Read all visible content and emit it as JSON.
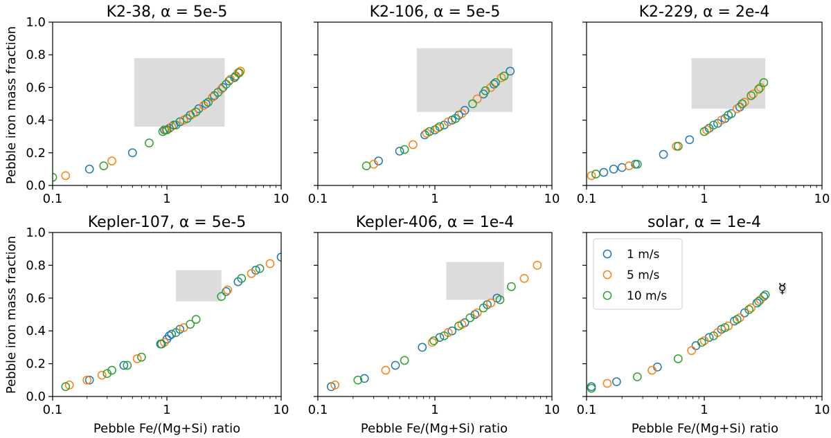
{
  "figure": {
    "ylabel": "Pebble iron mass fraction",
    "xlabel": "Pebble Fe/(Mg+Si) ratio",
    "alpha_symbol": "α"
  },
  "chart_data": [
    {
      "type": "scatter",
      "title": "K2-38, α = 5e-5",
      "name": "K2-38",
      "alpha": "5e-5",
      "xscale": "log",
      "xlim": [
        0.1,
        10
      ],
      "ylim": [
        0,
        1.0
      ],
      "xticks": [
        "0.1",
        "1",
        "10"
      ],
      "yticks": [
        "0.0",
        "0.2",
        "0.4",
        "0.6",
        "0.8",
        "1.0"
      ],
      "box": {
        "x": [
          0.52,
          3.2
        ],
        "y": [
          0.36,
          0.78
        ]
      },
      "series": [
        {
          "name": "1 m/s",
          "color": "#1f77b4",
          "points": [
            [
              0.21,
              0.1
            ],
            [
              0.5,
              0.2
            ],
            [
              0.95,
              0.34
            ],
            [
              1.05,
              0.35
            ],
            [
              1.15,
              0.37
            ],
            [
              1.3,
              0.39
            ],
            [
              1.6,
              0.43
            ],
            [
              1.9,
              0.47
            ],
            [
              2.2,
              0.5
            ],
            [
              2.6,
              0.55
            ],
            [
              3.1,
              0.6
            ],
            [
              3.5,
              0.64
            ],
            [
              4.0,
              0.67
            ]
          ]
        },
        {
          "name": "5 m/s",
          "color": "#ff7f0e",
          "points": [
            [
              0.13,
              0.06
            ],
            [
              0.33,
              0.15
            ],
            [
              0.98,
              0.34
            ],
            [
              1.1,
              0.36
            ],
            [
              1.4,
              0.4
            ],
            [
              1.7,
              0.44
            ],
            [
              2.1,
              0.49
            ],
            [
              2.5,
              0.54
            ],
            [
              3.0,
              0.59
            ],
            [
              3.6,
              0.65
            ],
            [
              4.2,
              0.69
            ],
            [
              4.4,
              0.7
            ]
          ]
        },
        {
          "name": "10 m/s",
          "color": "#2ca02c",
          "points": [
            [
              0.1,
              0.05
            ],
            [
              0.28,
              0.12
            ],
            [
              0.7,
              0.26
            ],
            [
              0.92,
              0.33
            ],
            [
              1.0,
              0.34
            ],
            [
              1.2,
              0.37
            ],
            [
              1.5,
              0.41
            ],
            [
              1.8,
              0.45
            ],
            [
              2.3,
              0.51
            ],
            [
              2.8,
              0.57
            ],
            [
              3.3,
              0.62
            ],
            [
              3.9,
              0.66
            ],
            [
              4.3,
              0.69
            ]
          ]
        }
      ]
    },
    {
      "type": "scatter",
      "title": "K2-106, α = 5e-5",
      "name": "K2-106",
      "alpha": "5e-5",
      "xscale": "log",
      "xlim": [
        0.1,
        10
      ],
      "ylim": [
        0,
        1.0
      ],
      "xticks": [
        "0.1",
        "1",
        "10"
      ],
      "yticks": [
        "0.0",
        "0.2",
        "0.4",
        "0.6",
        "0.8",
        "1.0"
      ],
      "box": {
        "x": [
          0.7,
          4.6
        ],
        "y": [
          0.45,
          0.84
        ]
      },
      "series": [
        {
          "name": "1 m/s",
          "color": "#1f77b4",
          "points": [
            [
              0.33,
              0.15
            ],
            [
              0.5,
              0.21
            ],
            [
              0.82,
              0.31
            ],
            [
              1.0,
              0.34
            ],
            [
              1.2,
              0.37
            ],
            [
              1.4,
              0.4
            ],
            [
              1.6,
              0.43
            ],
            [
              1.8,
              0.46
            ],
            [
              2.6,
              0.56
            ],
            [
              3.2,
              0.62
            ],
            [
              4.4,
              0.7
            ]
          ]
        },
        {
          "name": "5 m/s",
          "color": "#ff7f0e",
          "points": [
            [
              0.3,
              0.13
            ],
            [
              0.65,
              0.25
            ],
            [
              0.85,
              0.32
            ],
            [
              1.05,
              0.35
            ],
            [
              1.3,
              0.39
            ],
            [
              1.7,
              0.44
            ],
            [
              2.3,
              0.53
            ],
            [
              3.0,
              0.6
            ],
            [
              3.7,
              0.66
            ]
          ]
        },
        {
          "name": "10 m/s",
          "color": "#2ca02c",
          "points": [
            [
              0.26,
              0.12
            ],
            [
              0.55,
              0.22
            ],
            [
              0.9,
              0.33
            ],
            [
              1.1,
              0.36
            ],
            [
              1.5,
              0.41
            ],
            [
              2.1,
              0.5
            ],
            [
              2.7,
              0.58
            ],
            [
              3.3,
              0.63
            ],
            [
              3.9,
              0.67
            ]
          ]
        }
      ]
    },
    {
      "type": "scatter",
      "title": "K2-229, α = 2e-4",
      "name": "K2-229",
      "alpha": "2e-4",
      "xscale": "log",
      "xlim": [
        0.1,
        10
      ],
      "ylim": [
        0,
        1.0
      ],
      "xticks": [
        "0.1",
        "1",
        "10"
      ],
      "yticks": [
        "0.0",
        "0.2",
        "0.4",
        "0.6",
        "0.8",
        "1.0"
      ],
      "box": {
        "x": [
          0.78,
          3.3
        ],
        "y": [
          0.47,
          0.78
        ]
      },
      "series": [
        {
          "name": "1 m/s",
          "color": "#1f77b4",
          "points": [
            [
              0.14,
              0.08
            ],
            [
              0.17,
              0.1
            ],
            [
              0.2,
              0.11
            ],
            [
              0.26,
              0.13
            ],
            [
              0.45,
              0.19
            ],
            [
              0.75,
              0.28
            ],
            [
              1.1,
              0.35
            ],
            [
              1.3,
              0.38
            ],
            [
              1.5,
              0.41
            ],
            [
              1.7,
              0.44
            ],
            [
              2.0,
              0.48
            ]
          ]
        },
        {
          "name": "5 m/s",
          "color": "#ff7f0e",
          "points": [
            [
              0.11,
              0.06
            ],
            [
              0.23,
              0.12
            ],
            [
              0.58,
              0.24
            ],
            [
              1.05,
              0.34
            ],
            [
              1.4,
              0.4
            ],
            [
              1.9,
              0.47
            ],
            [
              2.2,
              0.51
            ],
            [
              2.6,
              0.56
            ],
            [
              3.0,
              0.6
            ]
          ]
        },
        {
          "name": "10 m/s",
          "color": "#2ca02c",
          "points": [
            [
              0.12,
              0.07
            ],
            [
              0.27,
              0.13
            ],
            [
              0.6,
              0.24
            ],
            [
              1.0,
              0.33
            ],
            [
              1.2,
              0.37
            ],
            [
              1.6,
              0.43
            ],
            [
              2.1,
              0.5
            ],
            [
              2.5,
              0.55
            ],
            [
              2.9,
              0.59
            ],
            [
              3.2,
              0.63
            ]
          ]
        }
      ]
    },
    {
      "type": "scatter",
      "title": "Kepler-107, α = 5e-5",
      "name": "Kepler-107",
      "alpha": "5e-5",
      "xscale": "log",
      "xlim": [
        0.1,
        10
      ],
      "ylim": [
        0,
        1.0
      ],
      "xticks": [
        "0.1",
        "1",
        "10"
      ],
      "yticks": [
        "0.0",
        "0.2",
        "0.4",
        "0.6",
        "0.8",
        "1.0"
      ],
      "box": {
        "x": [
          1.2,
          3.0
        ],
        "y": [
          0.58,
          0.77
        ]
      },
      "series": [
        {
          "name": "1 m/s",
          "color": "#1f77b4",
          "points": [
            [
              0.21,
              0.1
            ],
            [
              0.42,
              0.19
            ],
            [
              0.88,
              0.32
            ],
            [
              1.0,
              0.35
            ],
            [
              1.05,
              0.37
            ],
            [
              1.1,
              0.38
            ],
            [
              1.3,
              0.41
            ],
            [
              3.3,
              0.64
            ],
            [
              4.2,
              0.7
            ],
            [
              6.0,
              0.77
            ],
            [
              10.0,
              0.85
            ]
          ]
        },
        {
          "name": "5 m/s",
          "color": "#ff7f0e",
          "points": [
            [
              0.14,
              0.07
            ],
            [
              0.2,
              0.1
            ],
            [
              0.27,
              0.13
            ],
            [
              0.55,
              0.23
            ],
            [
              0.95,
              0.33
            ],
            [
              1.4,
              0.42
            ],
            [
              3.4,
              0.65
            ],
            [
              5.5,
              0.75
            ],
            [
              8.0,
              0.81
            ]
          ]
        },
        {
          "name": "10 m/s",
          "color": "#2ca02c",
          "points": [
            [
              0.13,
              0.06
            ],
            [
              0.3,
              0.14
            ],
            [
              0.33,
              0.16
            ],
            [
              0.45,
              0.19
            ],
            [
              0.6,
              0.24
            ],
            [
              0.9,
              0.32
            ],
            [
              1.2,
              0.39
            ],
            [
              1.6,
              0.44
            ],
            [
              1.8,
              0.47
            ],
            [
              3.0,
              0.61
            ],
            [
              4.5,
              0.72
            ],
            [
              6.5,
              0.78
            ]
          ]
        }
      ]
    },
    {
      "type": "scatter",
      "title": "Kepler-406, α = 1e-4",
      "name": "Kepler-406",
      "alpha": "1e-4",
      "xscale": "log",
      "xlim": [
        0.1,
        10
      ],
      "ylim": [
        0,
        1.0
      ],
      "xticks": [
        "0.1",
        "1",
        "10"
      ],
      "yticks": [
        "0.0",
        "0.2",
        "0.4",
        "0.6",
        "0.8",
        "1.0"
      ],
      "box": {
        "x": [
          1.25,
          3.9
        ],
        "y": [
          0.59,
          0.82
        ]
      },
      "series": [
        {
          "name": "1 m/s",
          "color": "#1f77b4",
          "points": [
            [
              0.13,
              0.06
            ],
            [
              0.25,
              0.11
            ],
            [
              0.46,
              0.19
            ],
            [
              0.78,
              0.3
            ],
            [
              1.1,
              0.36
            ],
            [
              1.4,
              0.4
            ],
            [
              1.8,
              0.45
            ],
            [
              2.2,
              0.5
            ],
            [
              2.8,
              0.56
            ],
            [
              3.4,
              0.6
            ]
          ]
        },
        {
          "name": "5 m/s",
          "color": "#ff7f0e",
          "points": [
            [
              0.14,
              0.07
            ],
            [
              0.38,
              0.16
            ],
            [
              0.95,
              0.33
            ],
            [
              1.3,
              0.39
            ],
            [
              1.7,
              0.44
            ],
            [
              2.3,
              0.51
            ],
            [
              3.0,
              0.57
            ],
            [
              5.8,
              0.72
            ],
            [
              7.5,
              0.8
            ]
          ]
        },
        {
          "name": "10 m/s",
          "color": "#2ca02c",
          "points": [
            [
              0.22,
              0.1
            ],
            [
              0.55,
              0.22
            ],
            [
              0.98,
              0.34
            ],
            [
              1.2,
              0.37
            ],
            [
              1.6,
              0.43
            ],
            [
              2.0,
              0.48
            ],
            [
              2.6,
              0.54
            ],
            [
              3.6,
              0.59
            ],
            [
              4.5,
              0.67
            ]
          ]
        }
      ]
    },
    {
      "type": "scatter",
      "title": "solar, α = 1e-4",
      "name": "solar",
      "alpha": "1e-4",
      "xscale": "log",
      "xlim": [
        0.1,
        10
      ],
      "ylim": [
        0,
        1.0
      ],
      "xticks": [
        "0.1",
        "1",
        "10"
      ],
      "yticks": [
        "0.0",
        "0.2",
        "0.4",
        "0.6",
        "0.8",
        "1.0"
      ],
      "box": {
        "x": [
          4.3,
          5.0
        ],
        "y": [
          0.63,
          0.69
        ]
      },
      "mercury": {
        "x": 4.6,
        "y": 0.66,
        "symbol": "☿"
      },
      "legend": {
        "position": "upper-left"
      },
      "series": [
        {
          "name": "1 m/s",
          "color": "#1f77b4",
          "points": [
            [
              0.11,
              0.06
            ],
            [
              0.18,
              0.09
            ],
            [
              0.4,
              0.18
            ],
            [
              0.85,
              0.31
            ],
            [
              1.1,
              0.36
            ],
            [
              1.4,
              0.41
            ],
            [
              1.8,
              0.46
            ],
            [
              2.2,
              0.51
            ],
            [
              2.8,
              0.57
            ],
            [
              3.2,
              0.61
            ]
          ]
        },
        {
          "name": "5 m/s",
          "color": "#ff7f0e",
          "points": [
            [
              0.15,
              0.08
            ],
            [
              0.36,
              0.16
            ],
            [
              0.78,
              0.28
            ],
            [
              1.0,
              0.34
            ],
            [
              1.3,
              0.39
            ],
            [
              1.6,
              0.43
            ],
            [
              2.0,
              0.48
            ],
            [
              2.5,
              0.54
            ],
            [
              3.0,
              0.59
            ]
          ]
        },
        {
          "name": "10 m/s",
          "color": "#2ca02c",
          "points": [
            [
              0.11,
              0.05
            ],
            [
              0.27,
              0.12
            ],
            [
              0.6,
              0.23
            ],
            [
              0.95,
              0.33
            ],
            [
              1.2,
              0.37
            ],
            [
              1.5,
              0.42
            ],
            [
              1.9,
              0.47
            ],
            [
              2.4,
              0.53
            ],
            [
              2.9,
              0.58
            ],
            [
              3.3,
              0.62
            ]
          ]
        }
      ]
    }
  ]
}
